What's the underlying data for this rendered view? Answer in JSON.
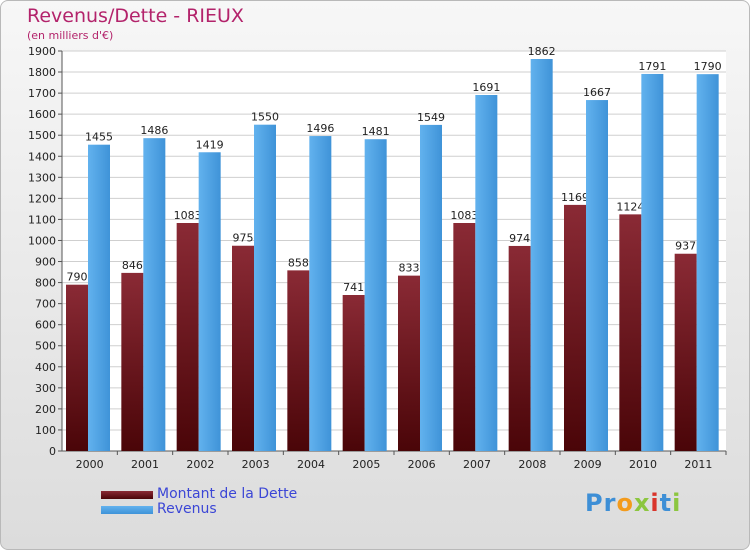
{
  "chart_data": {
    "type": "bar",
    "title": "Revenus/Dette - RIEUX",
    "subtitle": "(en milliers d'€)",
    "categories": [
      "2000",
      "2001",
      "2002",
      "2003",
      "2004",
      "2005",
      "2006",
      "2007",
      "2008",
      "2009",
      "2010",
      "2011"
    ],
    "series": [
      {
        "name": "Montant de la Dette",
        "values": [
          790,
          846,
          1083,
          975,
          858,
          741,
          833,
          1083,
          974,
          1169,
          1124,
          937
        ],
        "color": "#7a1f2c"
      },
      {
        "name": "Revenus",
        "values": [
          1455,
          1486,
          1419,
          1550,
          1496,
          1481,
          1549,
          1691,
          1862,
          1667,
          1791,
          1790
        ],
        "color": "#4fa3e3"
      }
    ],
    "ylim": [
      0,
      1900
    ],
    "ytick_step": 100,
    "grid": true,
    "legend": "bottom-left"
  },
  "brand": {
    "letters": [
      {
        "ch": "P",
        "color": "#3e8fd6"
      },
      {
        "ch": "r",
        "color": "#3e8fd6"
      },
      {
        "ch": "o",
        "color": "#f39b1c"
      },
      {
        "ch": "x",
        "color": "#8cc63f"
      },
      {
        "ch": "i",
        "color": "#d9342b"
      },
      {
        "ch": "t",
        "color": "#3e8fd6"
      },
      {
        "ch": "i",
        "color": "#8cc63f"
      }
    ]
  }
}
